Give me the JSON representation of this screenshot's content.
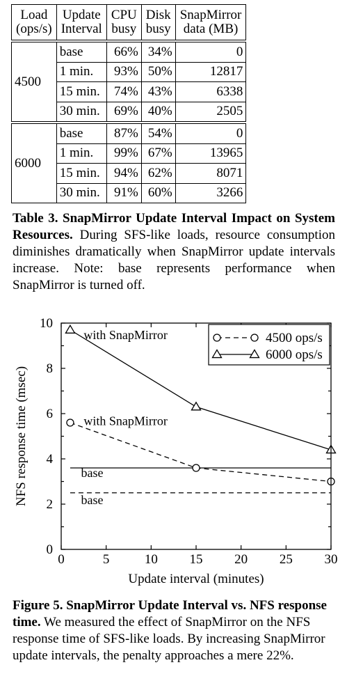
{
  "table": {
    "headers": [
      [
        "Load",
        "(ops/s)"
      ],
      [
        "Update",
        "Interval"
      ],
      [
        "CPU",
        "busy"
      ],
      [
        "Disk",
        "busy"
      ],
      [
        "SnapMirror",
        "data (MB)"
      ]
    ],
    "groups": [
      {
        "load": "4500",
        "rows": [
          {
            "interval": "base",
            "cpu": "66%",
            "disk": "34%",
            "data": "0"
          },
          {
            "interval": "1 min.",
            "cpu": "93%",
            "disk": "50%",
            "data": "12817"
          },
          {
            "interval": "15 min.",
            "cpu": "74%",
            "disk": "43%",
            "data": "6338"
          },
          {
            "interval": "30 min.",
            "cpu": "69%",
            "disk": "40%",
            "data": "2505"
          }
        ]
      },
      {
        "load": "6000",
        "rows": [
          {
            "interval": "base",
            "cpu": "87%",
            "disk": "54%",
            "data": "0"
          },
          {
            "interval": "1 min.",
            "cpu": "99%",
            "disk": "67%",
            "data": "13965"
          },
          {
            "interval": "15 min.",
            "cpu": "94%",
            "disk": "62%",
            "data": "8071"
          },
          {
            "interval": "30 min.",
            "cpu": "91%",
            "disk": "60%",
            "data": "3266"
          }
        ]
      }
    ]
  },
  "table_caption": {
    "bold": "Table 3. SnapMirror Update Interval Impact on System Resources.",
    "text": " During SFS-like loads, resource consumption diminishes dramatically when SnapMirror update intervals increase. Note: base represents performance when SnapMirror is turned off."
  },
  "chart_data": {
    "type": "line",
    "xlabel": "Update interval (minutes)",
    "ylabel": "NFS response time (msec)",
    "xlim": [
      0,
      30
    ],
    "ylim": [
      0,
      10
    ],
    "xticks": [
      0,
      5,
      10,
      15,
      20,
      25,
      30
    ],
    "yticks": [
      0,
      2,
      4,
      6,
      8,
      10
    ],
    "grid": false,
    "legend_position": "top-right",
    "series": [
      {
        "name": "4500 ops/s",
        "marker": "circle",
        "style": "dashed",
        "x": [
          1,
          15,
          30
        ],
        "y": [
          5.6,
          3.6,
          3.0
        ]
      },
      {
        "name": "6000 ops/s",
        "marker": "triangle",
        "style": "solid",
        "x": [
          1,
          15,
          30
        ],
        "y": [
          9.7,
          6.3,
          4.4
        ]
      }
    ],
    "baselines": [
      {
        "style": "solid",
        "y": 3.6
      },
      {
        "style": "dashed",
        "y": 2.5
      }
    ],
    "annotations": [
      {
        "text": "with SnapMirror",
        "x": 2.5,
        "y": 9.3
      },
      {
        "text": "with SnapMirror",
        "x": 2.5,
        "y": 5.5
      },
      {
        "text": "base",
        "x": 2.2,
        "y": 3.2
      },
      {
        "text": "base",
        "x": 2.2,
        "y": 2.0
      }
    ]
  },
  "figure_caption": {
    "bold": "Figure 5. SnapMirror Update Interval vs. NFS response time.",
    "text": " We measured the effect of SnapMirror on the NFS response time of SFS-like loads. By increasing SnapMirror update intervals, the penalty approaches a mere 22%."
  }
}
